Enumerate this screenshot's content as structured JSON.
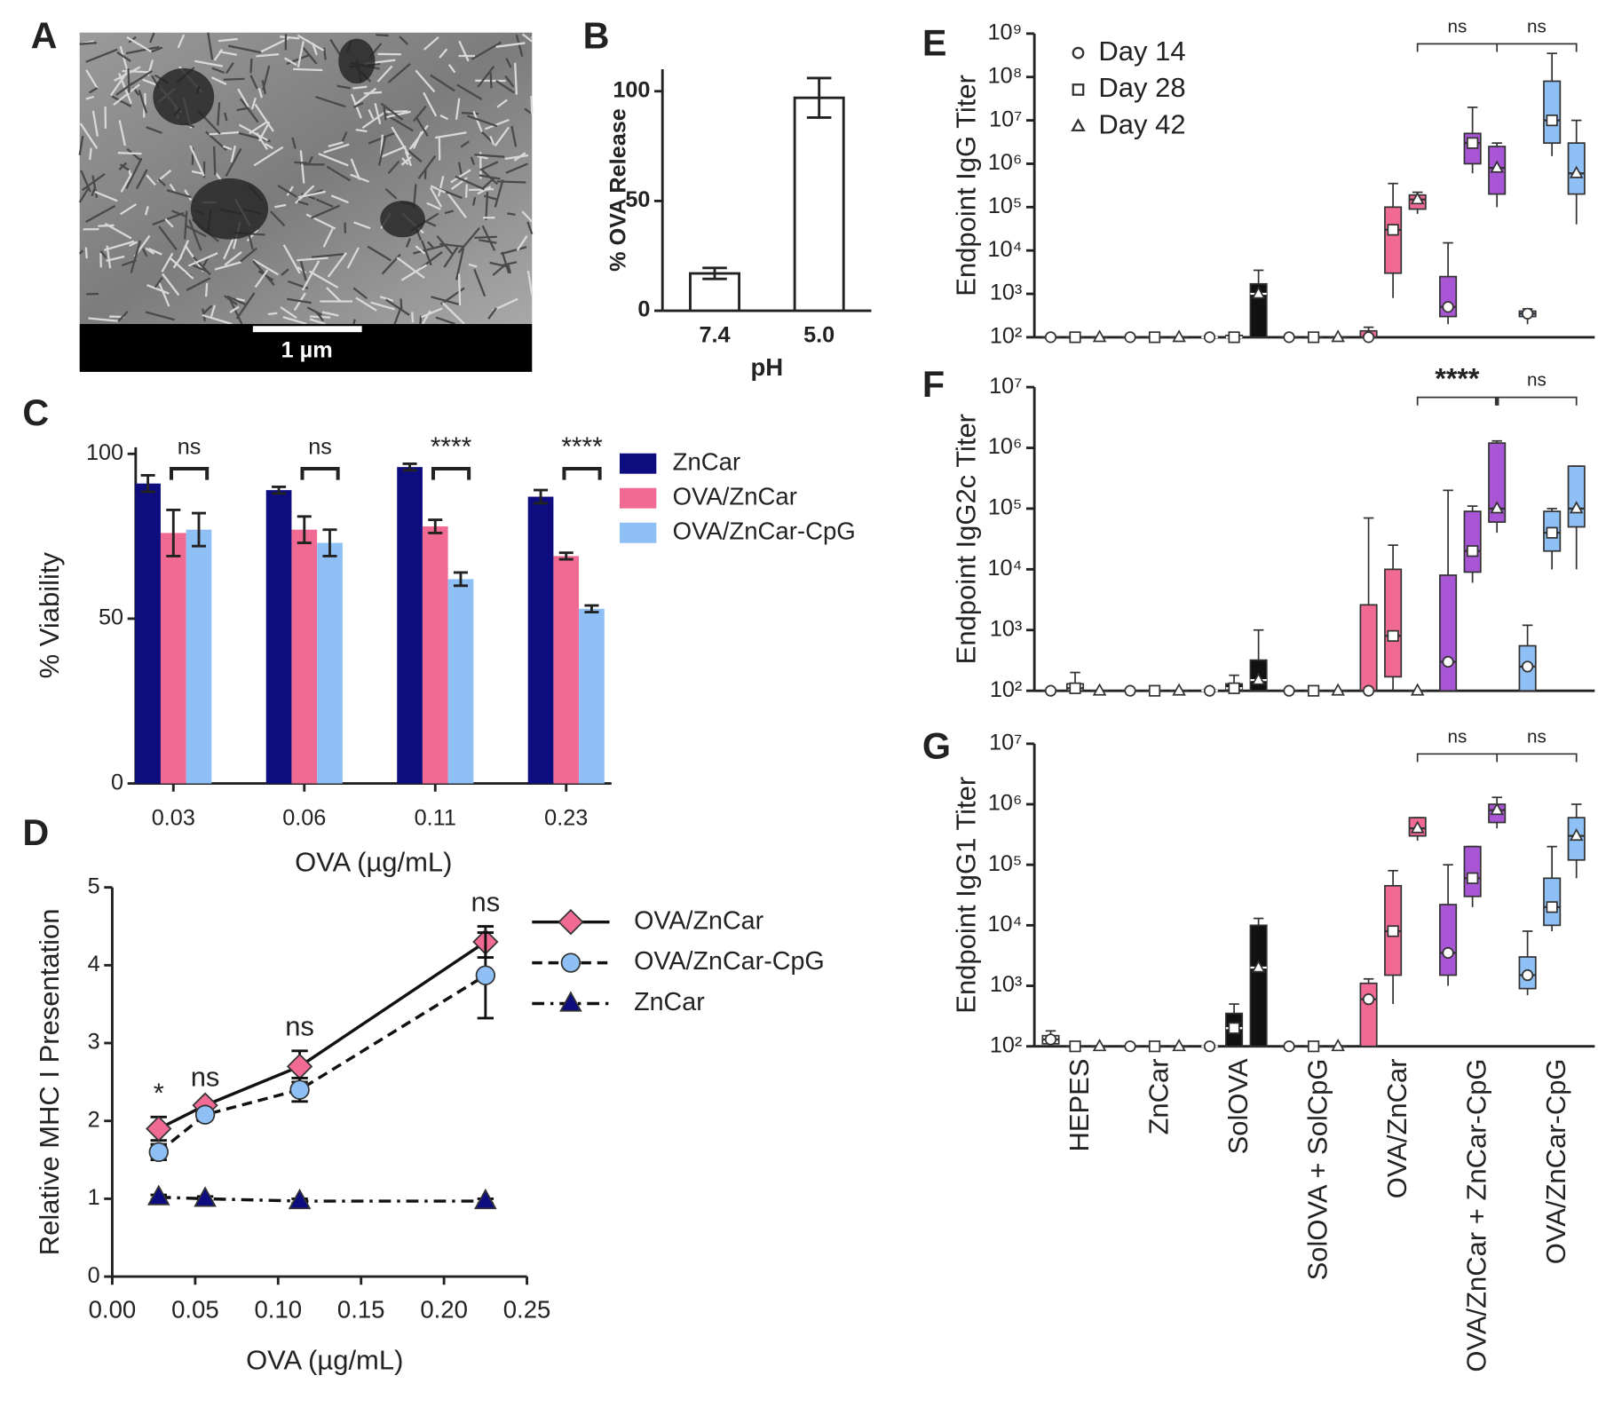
{
  "chart_data": [
    {
      "type": "image",
      "panel": "A",
      "scale_bar": "1 µm"
    },
    {
      "type": "bar",
      "panel": "B",
      "categories": [
        "7.4",
        "5.0"
      ],
      "values": [
        17,
        97
      ],
      "errors": [
        2.5,
        9
      ],
      "color": "#ffffff",
      "xlabel": "pH",
      "ylabel": "% OVA Release",
      "ylim": [
        0,
        110
      ],
      "yticks": [
        0,
        50,
        100
      ]
    },
    {
      "type": "grouped_bar",
      "panel": "C",
      "categories": [
        "0.03",
        "0.06",
        "0.11",
        "0.23"
      ],
      "series": [
        {
          "name": "ZnCar",
          "color": "#0d0d80",
          "values": [
            91,
            89,
            96,
            87
          ],
          "errors": [
            2.5,
            1,
            1,
            2
          ]
        },
        {
          "name": "OVA/ZnCar",
          "color": "#f06a93",
          "values": [
            76,
            77,
            78,
            69
          ],
          "errors": [
            7,
            4,
            2,
            1
          ]
        },
        {
          "name": "OVA/ZnCar-CpG",
          "color": "#8ec0f5",
          "values": [
            77,
            73,
            62,
            53
          ],
          "errors": [
            5,
            4,
            2,
            1
          ]
        }
      ],
      "annotations": [
        "ns",
        "ns",
        "****",
        "****"
      ],
      "xlabel": "OVA (µg/mL)",
      "ylabel": "% Viability",
      "ylim": [
        0,
        102
      ],
      "yticks": [
        0,
        50,
        100
      ]
    },
    {
      "type": "line",
      "panel": "D",
      "x": [
        0.028,
        0.056,
        0.113,
        0.225
      ],
      "series": [
        {
          "name": "OVA/ZnCar",
          "color": "#f06a93",
          "marker": "diamond",
          "dash": "solid",
          "values": [
            1.9,
            2.2,
            2.7,
            4.3
          ],
          "errors": [
            0.15,
            0.05,
            0.2,
            0.2
          ]
        },
        {
          "name": "OVA/ZnCar-CpG",
          "color": "#8ec0f5",
          "marker": "circle",
          "dash": "dashed",
          "values": [
            1.6,
            2.08,
            2.4,
            3.87
          ],
          "errors": [
            0.1,
            0.05,
            0.15,
            0.55
          ]
        },
        {
          "name": "ZnCar",
          "color": "#0d0d80",
          "marker": "triangle",
          "dash": "dashdot",
          "values": [
            1.02,
            1.0,
            0.97,
            0.97
          ],
          "errors": [
            0.03,
            0.03,
            0.03,
            0.03
          ]
        }
      ],
      "annotations": [
        "*",
        "ns",
        "ns",
        "ns"
      ],
      "xlabel": "OVA (µg/mL)",
      "ylabel": "Relative MHC I Presentation",
      "xlim": [
        0,
        0.25
      ],
      "xticks": [
        {
          "value": 0,
          "label": "0.00"
        },
        {
          "value": 0.05,
          "label": "0.05"
        },
        {
          "value": 0.1,
          "label": "0.10"
        },
        {
          "value": 0.15,
          "label": "0.15"
        },
        {
          "value": 0.2,
          "label": "0.20"
        },
        {
          "value": 0.25,
          "label": "0.25"
        }
      ],
      "ylim": [
        0,
        5
      ],
      "yticks": [
        0,
        1,
        2,
        3,
        4,
        5
      ]
    },
    {
      "type": "box",
      "panel": "E",
      "ylabel": "Endpoint IgG Titer",
      "log_scale": true,
      "colors": [
        "#ffffff",
        "#ffffff",
        "#111111",
        "#ffffff",
        "#f06a93",
        "#a855d6",
        "#8ec0f5"
      ],
      "series": [
        {
          "name": "Day 14",
          "marker": "circle",
          "values": [
            [
              100,
              100,
              100,
              100,
              100
            ],
            [
              100,
              100,
              100,
              100,
              100
            ],
            [
              100,
              100,
              100,
              100,
              100
            ],
            [
              100,
              100,
              100,
              100,
              100
            ],
            [
              100,
              100,
              100,
              140,
              170
            ],
            [
              200,
              300,
              500,
              2500,
              15000
            ],
            [
              200,
              300,
              350,
              400,
              450
            ]
          ]
        },
        {
          "name": "Day 28",
          "marker": "square",
          "values": [
            [
              100,
              100,
              100,
              100,
              100
            ],
            [
              100,
              100,
              100,
              100,
              100
            ],
            [
              100,
              100,
              100,
              110,
              120
            ],
            [
              100,
              100,
              100,
              100,
              100
            ],
            [
              800,
              3000,
              30000,
              100000,
              350000
            ],
            [
              600000,
              1000000,
              3000000,
              5000000,
              20000000
            ],
            [
              1500000,
              3000000,
              10000000,
              80000000,
              350000000
            ]
          ]
        },
        {
          "name": "Day 42",
          "marker": "triangle",
          "values": [
            [
              100,
              100,
              100,
              100,
              100
            ],
            [
              100,
              100,
              100,
              100,
              100
            ],
            [
              100,
              100,
              1000,
              1700,
              3500
            ],
            [
              100,
              100,
              100,
              100,
              100
            ],
            [
              70000,
              90000,
              150000,
              190000,
              220000
            ],
            [
              100000,
              200000,
              800000,
              2500000,
              3000000
            ],
            [
              40000,
              200000,
              600000,
              3000000,
              10000000
            ]
          ]
        }
      ],
      "annotations": [
        "ns",
        "ns"
      ],
      "ylim": [
        100,
        1000000000
      ],
      "yticks": [
        {
          "value": 100,
          "label": "10²"
        },
        {
          "value": 1000,
          "label": "10³"
        },
        {
          "value": 10000,
          "label": "10⁴"
        },
        {
          "value": 100000,
          "label": "10⁵"
        },
        {
          "value": 1000000,
          "label": "10⁶"
        },
        {
          "value": 10000000,
          "label": "10⁷"
        },
        {
          "value": 100000000,
          "label": "10⁸"
        },
        {
          "value": 1000000000,
          "label": "10⁹"
        }
      ]
    },
    {
      "type": "box",
      "panel": "F",
      "ylabel": "Endpoint IgG2c Titer",
      "log_scale": true,
      "colors": [
        "#ffffff",
        "#ffffff",
        "#111111",
        "#ffffff",
        "#f06a93",
        "#a855d6",
        "#8ec0f5"
      ],
      "series": [
        {
          "marker": "circle",
          "values": [
            [
              100,
              100,
              100,
              100,
              100
            ],
            [
              100,
              100,
              100,
              100,
              100
            ],
            [
              100,
              100,
              100,
              100,
              100
            ],
            [
              100,
              100,
              100,
              100,
              100
            ],
            [
              100,
              100,
              100,
              2600,
              70000
            ],
            [
              100,
              100,
              300,
              8000,
              200000
            ],
            [
              100,
              100,
              250,
              550,
              1200
            ]
          ]
        },
        {
          "marker": "square",
          "values": [
            [
              100,
              100,
              110,
              130,
              200
            ],
            [
              100,
              100,
              100,
              100,
              100
            ],
            [
              100,
              100,
              110,
              130,
              180
            ],
            [
              100,
              100,
              100,
              100,
              100
            ],
            [
              100,
              170,
              800,
              10000,
              25000
            ],
            [
              6000,
              9000,
              20000,
              90000,
              110000
            ],
            [
              10000,
              20000,
              40000,
              90000,
              100000
            ]
          ]
        },
        {
          "marker": "triangle",
          "values": [
            [
              100,
              100,
              100,
              100,
              100
            ],
            [
              100,
              100,
              100,
              100,
              100
            ],
            [
              100,
              100,
              150,
              320,
              1000
            ],
            [
              100,
              100,
              100,
              100,
              100
            ],
            [
              100,
              100,
              100,
              100,
              100
            ],
            [
              40000,
              60000,
              100000,
              1200000,
              1300000
            ],
            [
              10000,
              50000,
              100000,
              500000,
              500000
            ]
          ]
        }
      ],
      "annotations": [
        "****",
        "ns"
      ],
      "ylim": [
        100,
        10000000
      ],
      "yticks": [
        {
          "value": 100,
          "label": "10²"
        },
        {
          "value": 1000,
          "label": "10³"
        },
        {
          "value": 10000,
          "label": "10⁴"
        },
        {
          "value": 100000,
          "label": "10⁵"
        },
        {
          "value": 1000000,
          "label": "10⁶"
        },
        {
          "value": 10000000,
          "label": "10⁷"
        }
      ]
    },
    {
      "type": "box",
      "panel": "G",
      "ylabel": "Endpoint IgG1 Titer",
      "log_scale": true,
      "categories": [
        "HEPES",
        "ZnCar",
        "SolOVA",
        "SolOVA + SolCpG",
        "OVA/ZnCar",
        "OVA/ZnCar + ZnCar-CpG",
        "OVA/ZnCar-CpG"
      ],
      "colors": [
        "#ffffff",
        "#ffffff",
        "#111111",
        "#ffffff",
        "#f06a93",
        "#a855d6",
        "#8ec0f5"
      ],
      "series": [
        {
          "marker": "circle",
          "values": [
            [
              100,
              110,
              130,
              150,
              180
            ],
            [
              100,
              100,
              100,
              100,
              100
            ],
            [
              100,
              100,
              100,
              100,
              100
            ],
            [
              100,
              100,
              100,
              100,
              100
            ],
            [
              100,
              100,
              600,
              1100,
              1300
            ],
            [
              1000,
              1500,
              3500,
              22000,
              100000
            ],
            [
              700,
              900,
              1500,
              3000,
              8000
            ]
          ]
        },
        {
          "marker": "square",
          "values": [
            [
              100,
              100,
              100,
              100,
              100
            ],
            [
              100,
              100,
              100,
              100,
              100
            ],
            [
              100,
              100,
              200,
              350,
              500
            ],
            [
              100,
              100,
              100,
              100,
              100
            ],
            [
              500,
              1500,
              8000,
              45000,
              80000
            ],
            [
              20000,
              30000,
              60000,
              200000,
              200000
            ],
            [
              8000,
              10000,
              20000,
              60000,
              200000
            ]
          ]
        },
        {
          "marker": "triangle",
          "values": [
            [
              100,
              100,
              100,
              100,
              100
            ],
            [
              100,
              100,
              100,
              100,
              100
            ],
            [
              100,
              100,
              2000,
              10000,
              13000
            ],
            [
              100,
              100,
              100,
              100,
              100
            ],
            [
              250000,
              300000,
              400000,
              600000,
              600000
            ],
            [
              400000,
              500000,
              800000,
              1000000,
              1300000
            ],
            [
              60000,
              120000,
              300000,
              600000,
              1000000
            ]
          ]
        }
      ],
      "annotations": [
        "ns",
        "ns"
      ],
      "ylim": [
        100,
        10000000
      ],
      "yticks": [
        {
          "value": 100,
          "label": "10²"
        },
        {
          "value": 1000,
          "label": "10³"
        },
        {
          "value": 10000,
          "label": "10⁴"
        },
        {
          "value": 100000,
          "label": "10⁵"
        },
        {
          "value": 1000000,
          "label": "10⁶"
        },
        {
          "value": 10000000,
          "label": "10⁷"
        }
      ]
    }
  ]
}
